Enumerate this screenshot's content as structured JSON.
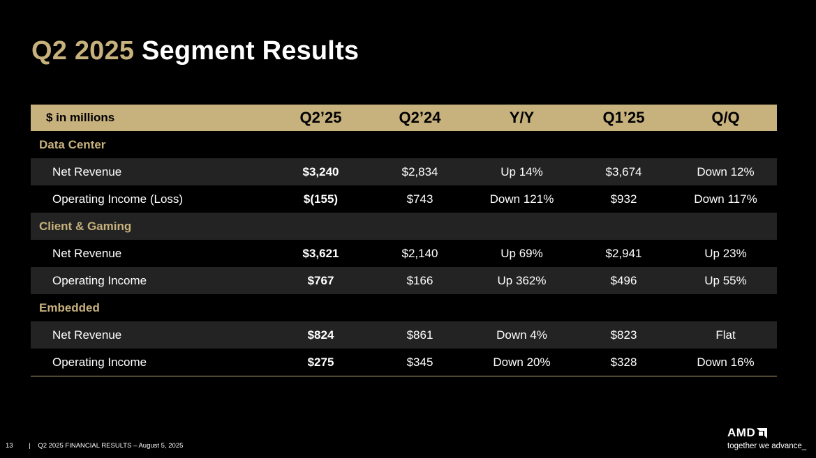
{
  "title": {
    "accent": "Q2 2025",
    "rest": "Segment Results"
  },
  "table": {
    "headers": [
      "$ in millions",
      "Q2’25",
      "Q2’24",
      "Y/Y",
      "Q1’25",
      "Q/Q"
    ],
    "rows": [
      {
        "type": "section",
        "label": "Data Center"
      },
      {
        "type": "item",
        "label": "Net Revenue",
        "values": [
          "$3,240",
          "$2,834",
          "Up 14%",
          "$3,674",
          "Down 12%"
        ]
      },
      {
        "type": "item",
        "label": "Operating Income (Loss)",
        "values": [
          "$(155)",
          "$743",
          "Down 121%",
          "$932",
          "Down 117%"
        ]
      },
      {
        "type": "section",
        "label": "Client & Gaming"
      },
      {
        "type": "item",
        "label": "Net Revenue",
        "values": [
          "$3,621",
          "$2,140",
          "Up 69%",
          "$2,941",
          "Up 23%"
        ]
      },
      {
        "type": "item",
        "label": "Operating Income",
        "values": [
          "$767",
          "$166",
          "Up 362%",
          "$496",
          "Up 55%"
        ]
      },
      {
        "type": "section",
        "label": "Embedded"
      },
      {
        "type": "item",
        "label": "Net Revenue",
        "values": [
          "$824",
          "$861",
          "Down 4%",
          "$823",
          "Flat"
        ]
      },
      {
        "type": "item",
        "label": "Operating Income",
        "values": [
          "$275",
          "$345",
          "Down 20%",
          "$328",
          "Down 16%"
        ]
      }
    ]
  },
  "footer": {
    "page": "13",
    "separator": "|",
    "text": "Q2 2025 FINANCIAL RESULTS – August 5, 2025"
  },
  "logo": {
    "wordmark": "AMD",
    "tagline": "together we advance_"
  },
  "colors": {
    "accent": "#c7b17d",
    "highlight_column": "#5b5b5b",
    "row_shade": "#232323",
    "background": "#000000"
  }
}
